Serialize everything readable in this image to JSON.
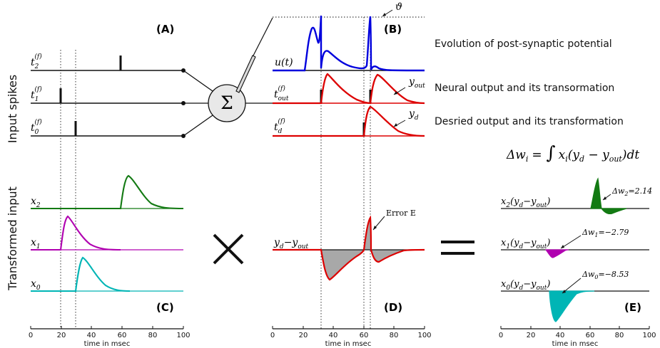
{
  "panels": {
    "a": "(A)",
    "b": "(B)",
    "c": "(C)",
    "d": "(D)",
    "e": "(E)"
  },
  "side_titles": {
    "top": "Input spikes",
    "bottom": "Transformed input"
  },
  "descriptions": {
    "psp": "Evolution of post-synaptic potential",
    "neural": "Neural output and its transormation",
    "desired": "Desried output and its transformation"
  },
  "axis": {
    "title": "time in msec",
    "ticks": [
      "0",
      "20",
      "40",
      "60",
      "80",
      "100"
    ]
  },
  "labels": {
    "theta": "ϑ",
    "u": "u(t)",
    "t2": "t",
    "t1": "t",
    "t0": "t",
    "t2_sub": "2",
    "t1_sub": "1",
    "t0_sub": "0",
    "f_sup": "(f)",
    "tout": "t",
    "tout_sub": "out",
    "td": "t",
    "td_sub": "d",
    "yout": "y",
    "yout_sub": "out",
    "yd": "y",
    "yd_sub": "d",
    "x2": "x",
    "x1": "x",
    "x0": "x",
    "x2_sub": "2",
    "x1_sub": "1",
    "x0_sub": "0",
    "error_label": "Error E",
    "diff_label": "y",
    "diff_sub_d": "d",
    "diff_minus": "−y",
    "diff_sub_out": "out",
    "sum_symbol": "Σ",
    "times_symbol": "×",
    "equals_symbol": "="
  },
  "equation": {
    "lhs": "Δw",
    "lhs_sub": "i",
    "eq": "=",
    "integral": "∫",
    "body_x": "x",
    "body_sub": "i",
    "body_rest": "(y",
    "body_sub_d": "d",
    "body_minus": " − y",
    "body_sub_out": "out",
    "body_end": ")dt"
  },
  "panel_e": {
    "row2_label": "x",
    "row2_sub": "2",
    "row1_label": "x",
    "row1_sub": "1",
    "row0_label": "x",
    "row0_sub": "0",
    "row_suffix": "(y",
    "row_suffix_sub_d": "d",
    "row_suffix_mid": "−y",
    "row_suffix_sub_out": "out",
    "row_suffix_end": ")",
    "dw2": "Δw",
    "dw2_sub": "2",
    "dw2_val": "=2.14",
    "dw1": "Δw",
    "dw1_sub": "1",
    "dw1_val": "=−2.79",
    "dw0": "Δw",
    "dw0_sub": "0",
    "dw0_val": "=−8.53"
  },
  "colors": {
    "u": "#0000dd",
    "output": "#dd0000",
    "x2": "#137a13",
    "x1": "#b000b0",
    "x0": "#00b5b5",
    "error_fill": "#a8a8a8"
  },
  "chart_data": [
    {
      "type": "line",
      "panel": "A",
      "x_range": [
        0,
        100
      ],
      "series": [
        {
          "name": "t_2^(f)",
          "spikes_ms": [
            60
          ]
        },
        {
          "name": "t_1^(f)",
          "spikes_ms": [
            20
          ]
        },
        {
          "name": "t_0^(f)",
          "spikes_ms": [
            30
          ]
        }
      ]
    },
    {
      "type": "line",
      "panel": "B",
      "x_range": [
        0,
        100
      ],
      "series": [
        {
          "name": "u(t)",
          "threshold_crossings_ms": [
            32,
            64
          ]
        },
        {
          "name": "t_out^(f)",
          "spikes_ms": [
            32,
            64
          ]
        },
        {
          "name": "t_d^(f)",
          "spikes_ms": [
            60
          ]
        }
      ]
    },
    {
      "type": "line",
      "panel": "C",
      "x_range": [
        0,
        100
      ],
      "series": [
        {
          "name": "x_2",
          "onset_ms": 60
        },
        {
          "name": "x_1",
          "onset_ms": 20
        },
        {
          "name": "x_0",
          "onset_ms": 30
        }
      ]
    },
    {
      "type": "area",
      "panel": "D",
      "x_range": [
        0,
        100
      ],
      "series": [
        {
          "name": "y_d − y_out"
        }
      ]
    },
    {
      "type": "area",
      "panel": "E",
      "x_range": [
        0,
        100
      ],
      "series": [
        {
          "name": "x_2(y_d − y_out)",
          "delta_w": 2.14
        },
        {
          "name": "x_1(y_d − y_out)",
          "delta_w": -2.79
        },
        {
          "name": "x_0(y_d − y_out)",
          "delta_w": -8.53
        }
      ]
    }
  ]
}
